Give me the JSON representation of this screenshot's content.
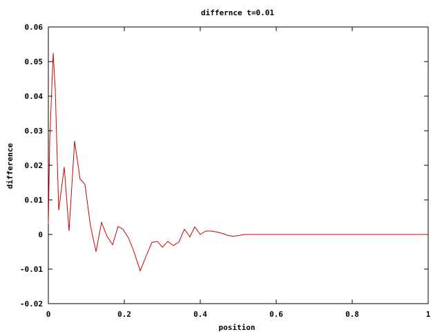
{
  "chart_data": {
    "type": "line",
    "title": "differnce t=0.01",
    "xlabel": "position",
    "ylabel": "difference",
    "xlim": [
      0,
      1
    ],
    "ylim": [
      -0.02,
      0.06
    ],
    "x_ticks": [
      0,
      0.2,
      0.4,
      0.6,
      0.8,
      1
    ],
    "y_ticks": [
      -0.02,
      -0.01,
      0,
      0.01,
      0.02,
      0.03,
      0.04,
      0.05,
      0.06
    ],
    "x_tick_labels": [
      "0",
      "0.2",
      "0.4",
      "0.6",
      "0.8",
      "1"
    ],
    "y_tick_labels": [
      "-0.02",
      "-0.01",
      "0",
      "0.01",
      "0.02",
      "0.03",
      "0.04",
      "0.05",
      "0.06"
    ],
    "grid": false,
    "series": [
      {
        "color": "#cc0000",
        "x": [
          0,
          0.0036,
          0.0127,
          0.0182,
          0.0273,
          0.0418,
          0.0545,
          0.0691,
          0.0836,
          0.0964,
          0.1109,
          0.1255,
          0.14,
          0.1545,
          0.1691,
          0.1836,
          0.1964,
          0.2109,
          0.2255,
          0.2418,
          0.2564,
          0.2727,
          0.2873,
          0.3,
          0.3145,
          0.3291,
          0.3436,
          0.3582,
          0.3727,
          0.3855,
          0.4,
          0.4145,
          0.4291,
          0.4436,
          0.4582,
          0.4727,
          0.4873,
          0.5018,
          0.5164,
          0.5309,
          0.6,
          0.7,
          0.8,
          0.9,
          1.0
        ],
        "values": [
          0.003,
          0.027,
          0.0525,
          0.042,
          0.007,
          0.0195,
          0.001,
          0.027,
          0.016,
          0.0145,
          0.0025,
          -0.005,
          0.0035,
          -0.0005,
          -0.003,
          0.0023,
          0.0015,
          -0.001,
          -0.005,
          -0.0105,
          -0.0065,
          -0.0023,
          -0.002,
          -0.0037,
          -0.002,
          -0.0032,
          -0.0022,
          0.0015,
          -0.0007,
          0.0022,
          0.0,
          0.001,
          0.001,
          0.0007,
          0.0003,
          -0.0003,
          -0.0005,
          -0.0003,
          0.0,
          0.0,
          0.0,
          0.0,
          0.0,
          0.0,
          0.0
        ]
      }
    ]
  }
}
